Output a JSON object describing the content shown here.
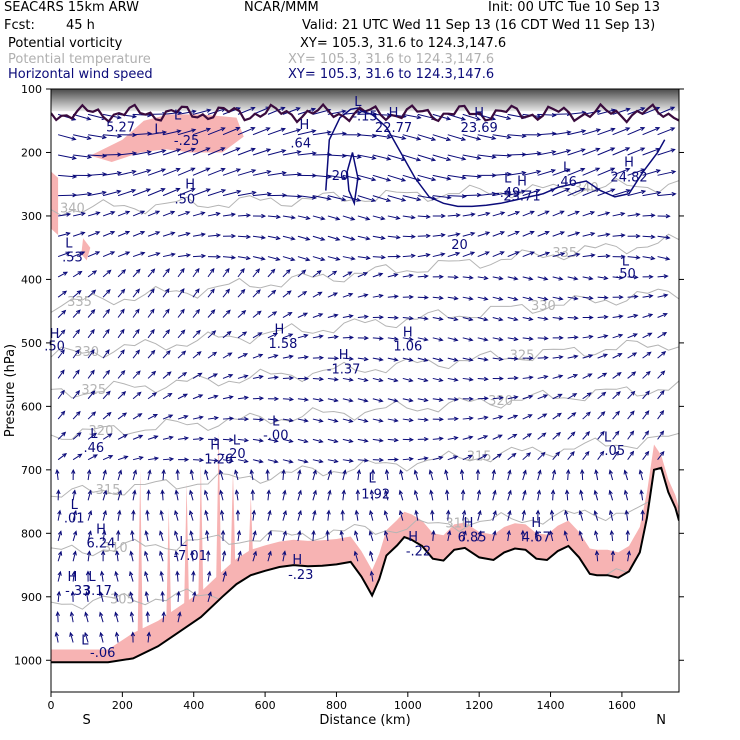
{
  "header": {
    "model": "SEAC4RS 15km ARW",
    "org": "NCAR/MMM",
    "init": "Init: 00 UTC Tue 10 Sep 13",
    "fcst": "Fcst:",
    "fcst_hours": "45 h",
    "valid": "Valid: 21 UTC Wed 11 Sep 13 (16 CDT Wed 11 Sep 13)",
    "fields": [
      {
        "name": "Potential vorticity",
        "xy": "XY= 105.3, 31.6 to 124.3,147.6",
        "color": "#000000"
      },
      {
        "name": "Potential temperature",
        "xy": "XY= 105.3, 31.6 to 124.3,147.6",
        "color": "#b0b0b0"
      },
      {
        "name": "Horizontal wind speed",
        "xy": "XY= 105.3, 31.6 to 124.3,147.6",
        "color": "#0b0b7a"
      }
    ]
  },
  "chart_data": {
    "type": "cross-section",
    "xlabel": "Distance (km)",
    "ylabel": "Pressure (hPa)",
    "xlim": [
      0,
      1760
    ],
    "ylim": [
      1050,
      100
    ],
    "x_ticks": [
      0,
      200,
      400,
      600,
      800,
      1000,
      1200,
      1400,
      1600
    ],
    "y_ticks": [
      100,
      200,
      300,
      400,
      500,
      600,
      700,
      800,
      900,
      1000
    ],
    "endpoint_labels": {
      "left": "S",
      "right": "N"
    },
    "colors": {
      "wind": "#0b0b7a",
      "theta": "#b4b4b4",
      "pv_fill": "#f7b3b3",
      "terrain": "#000000",
      "pv_line": "#3a0b3e"
    },
    "terrain": {
      "x": [
        0,
        80,
        160,
        230,
        300,
        360,
        420,
        480,
        520,
        560,
        600,
        640,
        680,
        720,
        760,
        800,
        840,
        870,
        885,
        900,
        920,
        940,
        970,
        990,
        1010,
        1040,
        1070,
        1100,
        1130,
        1160,
        1200,
        1240,
        1270,
        1300,
        1330,
        1360,
        1390,
        1420,
        1450,
        1480,
        1510,
        1530,
        1560,
        1590,
        1620,
        1650,
        1670,
        1690,
        1710,
        1730,
        1750,
        1760
      ],
      "p": [
        1003,
        1003,
        1003,
        997,
        978,
        955,
        932,
        900,
        880,
        866,
        859,
        853,
        850,
        852,
        851,
        849,
        845,
        868,
        883,
        898,
        872,
        835,
        819,
        806,
        810,
        820,
        840,
        843,
        826,
        823,
        838,
        842,
        830,
        824,
        826,
        840,
        842,
        828,
        820,
        838,
        864,
        866,
        866,
        870,
        860,
        830,
        776,
        700,
        697,
        735,
        760,
        780
      ]
    },
    "wind_speed_contours": [
      {
        "label": "20",
        "x": [
          770,
          780,
          810,
          840,
          860,
          870,
          900,
          940,
          980,
          1020,
          1060,
          1100,
          1140,
          1180,
          1220,
          1260,
          1300,
          1340,
          1380,
          1420,
          1460,
          1500,
          1540,
          1580,
          1620,
          1660,
          1700,
          1720
        ],
        "p": [
          260,
          180,
          145,
          132,
          130,
          135,
          140,
          160,
          200,
          240,
          270,
          280,
          285,
          285,
          283,
          280,
          275,
          270,
          265,
          255,
          250,
          245,
          260,
          270,
          265,
          230,
          200,
          180
        ]
      },
      {
        "label": "20",
        "x": [
          830,
          845,
          860,
          850,
          835,
          830
        ],
        "p": [
          230,
          200,
          240,
          280,
          260,
          230
        ]
      }
    ],
    "theta_contours": [
      {
        "label": "340",
        "p_left": 290,
        "p_right": 250
      },
      {
        "label": "335",
        "p_left": 440,
        "p_right": 340
      },
      {
        "label": "330",
        "p_left": 520,
        "p_right": 420
      },
      {
        "label": "325",
        "p_left": 580,
        "p_right": 500
      },
      {
        "label": "320",
        "p_left": 645,
        "p_right": 570
      },
      {
        "label": "315",
        "p_left": 740,
        "p_right": 650
      },
      {
        "label": "310",
        "p_left": 830,
        "p_right": 760
      },
      {
        "label": "305",
        "p_left": 910,
        "p_right": 860
      }
    ],
    "annotations": [
      {
        "text": "L",
        "x": 300,
        "p": 170
      },
      {
        "text": "5.27",
        "x": 195,
        "p": 167
      },
      {
        "text": "L",
        "x": 355,
        "p": 148
      },
      {
        "text": "-.25",
        "x": 380,
        "p": 188
      },
      {
        "text": "H",
        "x": 390,
        "p": 257
      },
      {
        "text": ".50",
        "x": 375,
        "p": 280
      },
      {
        "text": "L",
        "x": 50,
        "p": 350
      },
      {
        "text": ".53",
        "x": 60,
        "p": 372
      },
      {
        "text": "H",
        "x": 710,
        "p": 163
      },
      {
        "text": ".64",
        "x": 700,
        "p": 192
      },
      {
        "text": "L",
        "x": 860,
        "p": 127
      },
      {
        "text": "-.15",
        "x": 880,
        "p": 150
      },
      {
        "text": "H",
        "x": 960,
        "p": 144
      },
      {
        "text": "22.77",
        "x": 960,
        "p": 168
      },
      {
        "text": "H",
        "x": 1200,
        "p": 144
      },
      {
        "text": "23.69",
        "x": 1200,
        "p": 168
      },
      {
        "text": "L",
        "x": 1280,
        "p": 247
      },
      {
        "text": "-.49",
        "x": 1280,
        "p": 270
      },
      {
        "text": "H",
        "x": 1320,
        "p": 252
      },
      {
        "text": "23.71",
        "x": 1320,
        "p": 276
      },
      {
        "text": "L",
        "x": 1445,
        "p": 230
      },
      {
        "text": ".46",
        "x": 1445,
        "p": 253
      },
      {
        "text": "H",
        "x": 1620,
        "p": 222
      },
      {
        "text": "24.82",
        "x": 1620,
        "p": 246
      },
      {
        "text": "L",
        "x": 1610,
        "p": 378
      },
      {
        "text": ".50",
        "x": 1610,
        "p": 398
      },
      {
        "text": "H",
        "x": 10,
        "p": 492
      },
      {
        "text": ".50",
        "x": 10,
        "p": 512
      },
      {
        "text": "H",
        "x": 640,
        "p": 485
      },
      {
        "text": "1.58",
        "x": 650,
        "p": 508
      },
      {
        "text": "H",
        "x": 820,
        "p": 525
      },
      {
        "text": "-1.37",
        "x": 820,
        "p": 548
      },
      {
        "text": "H",
        "x": 1000,
        "p": 490
      },
      {
        "text": "1.06",
        "x": 1000,
        "p": 512
      },
      {
        "text": "L",
        "x": 630,
        "p": 630
      },
      {
        "text": "-.00",
        "x": 630,
        "p": 652
      },
      {
        "text": "L",
        "x": 120,
        "p": 650
      },
      {
        "text": ".46",
        "x": 120,
        "p": 672
      },
      {
        "text": "H",
        "x": 460,
        "p": 668
      },
      {
        "text": "1.26",
        "x": 470,
        "p": 690
      },
      {
        "text": "L",
        "x": 520,
        "p": 660
      },
      {
        "text": "-.20",
        "x": 510,
        "p": 681
      },
      {
        "text": "L",
        "x": 1560,
        "p": 655
      },
      {
        "text": ".05",
        "x": 1580,
        "p": 677
      },
      {
        "text": "L",
        "x": 900,
        "p": 720
      },
      {
        "text": "1.92",
        "x": 910,
        "p": 745
      },
      {
        "text": "L",
        "x": 65,
        "p": 762
      },
      {
        "text": ".01",
        "x": 65,
        "p": 783
      },
      {
        "text": "H",
        "x": 140,
        "p": 800
      },
      {
        "text": "6.24",
        "x": 140,
        "p": 822
      },
      {
        "text": "L",
        "x": 370,
        "p": 820
      },
      {
        "text": "-7.01",
        "x": 390,
        "p": 842
      },
      {
        "text": "H",
        "x": 1015,
        "p": 812
      },
      {
        "text": "-.22",
        "x": 1030,
        "p": 835
      },
      {
        "text": "H",
        "x": 1170,
        "p": 790
      },
      {
        "text": "6.85",
        "x": 1180,
        "p": 813
      },
      {
        "text": "H",
        "x": 1360,
        "p": 790
      },
      {
        "text": "4.67",
        "x": 1360,
        "p": 813
      },
      {
        "text": "H",
        "x": 690,
        "p": 848
      },
      {
        "text": "-.23",
        "x": 700,
        "p": 872
      },
      {
        "text": "H",
        "x": 60,
        "p": 875
      },
      {
        "text": "-.33",
        "x": 75,
        "p": 897
      },
      {
        "text": "L",
        "x": 115,
        "p": 875
      },
      {
        "text": "3.17",
        "x": 130,
        "p": 897
      },
      {
        "text": "L",
        "x": 95,
        "p": 975
      },
      {
        "text": "-.06",
        "x": 145,
        "p": 995
      },
      {
        "text": "20",
        "x": 810,
        "p": 243
      },
      {
        "text": "20",
        "x": 1145,
        "p": 352
      }
    ],
    "pv_positive_areas": [
      {
        "x": [
          110,
          200,
          260,
          330,
          420,
          520,
          540,
          480,
          390,
          320,
          250,
          170,
          110
        ],
        "p": [
          205,
          180,
          150,
          140,
          140,
          145,
          175,
          200,
          200,
          195,
          200,
          215,
          205
        ]
      },
      {
        "x": [
          0,
          20,
          20,
          0
        ],
        "p": [
          230,
          240,
          330,
          320
        ]
      },
      {
        "x": [
          90,
          110,
          100,
          85
        ],
        "p": [
          335,
          350,
          370,
          360
        ]
      }
    ]
  }
}
